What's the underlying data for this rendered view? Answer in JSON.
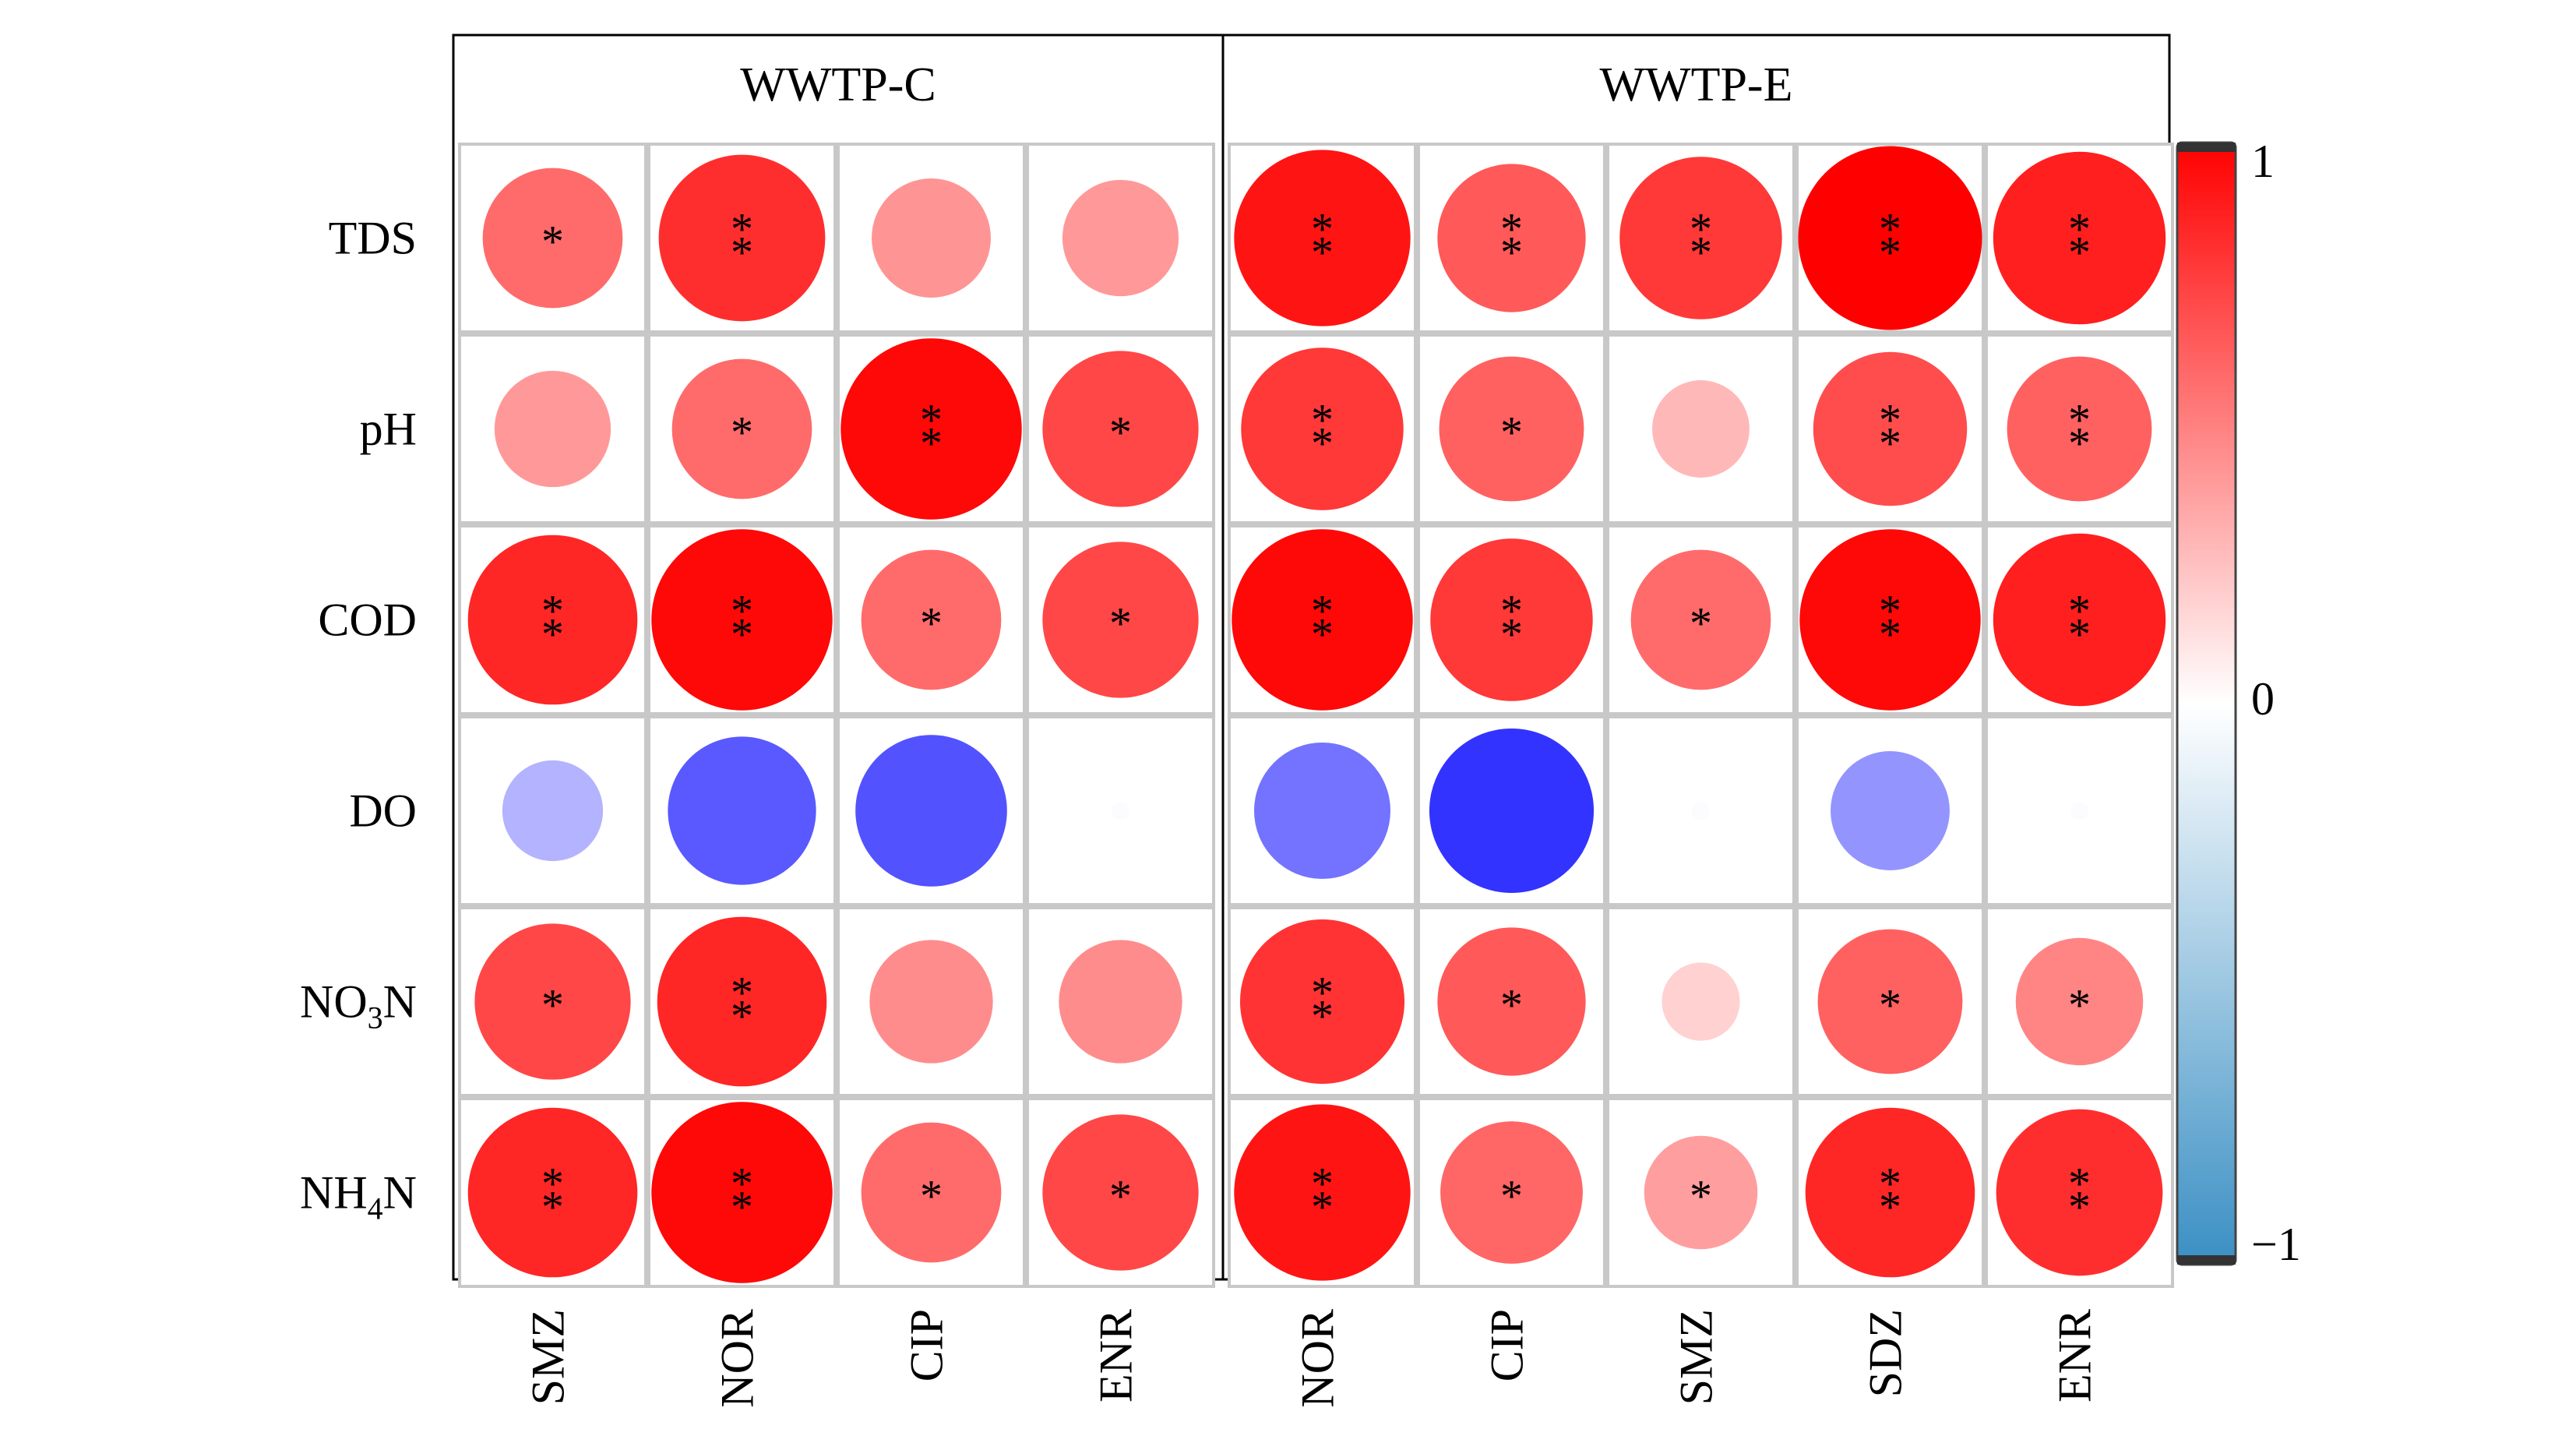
{
  "chart_data": {
    "type": "heatmap",
    "rows": [
      "TDS",
      "pH",
      "COD",
      "DO",
      "NO3N",
      "NH4N"
    ],
    "row_label_parts": [
      {
        "base": "TDS",
        "sub": "",
        "tail": ""
      },
      {
        "base": "pH",
        "sub": "",
        "tail": ""
      },
      {
        "base": "COD",
        "sub": "",
        "tail": ""
      },
      {
        "base": "DO",
        "sub": "",
        "tail": ""
      },
      {
        "base": "NO",
        "sub": "3",
        "tail": "N"
      },
      {
        "base": "NH",
        "sub": "4",
        "tail": "N"
      }
    ],
    "panels": [
      {
        "title": "WWTP-C",
        "columns": [
          "SMZ",
          "NOR",
          "CIP",
          "ENR"
        ],
        "values": [
          [
            0.58,
            0.82,
            0.42,
            0.4
          ],
          [
            0.4,
            0.58,
            0.97,
            0.72
          ],
          [
            0.85,
            0.97,
            0.58,
            0.72
          ],
          [
            -0.3,
            -0.65,
            -0.68,
            -0.01
          ],
          [
            0.72,
            0.85,
            0.45,
            0.45
          ],
          [
            0.85,
            0.97,
            0.58,
            0.72
          ]
        ],
        "significance": [
          [
            "*",
            "**",
            "",
            ""
          ],
          [
            "",
            "*",
            "**",
            "*"
          ],
          [
            "**",
            "**",
            "*",
            "*"
          ],
          [
            "",
            "",
            "",
            ""
          ],
          [
            "*",
            "**",
            "",
            ""
          ],
          [
            "**",
            "**",
            "*",
            "*"
          ]
        ]
      },
      {
        "title": "WWTP-E",
        "columns": [
          "NOR",
          "CIP",
          "SMZ",
          "SDZ",
          "ENR"
        ],
        "values": [
          [
            0.92,
            0.65,
            0.78,
            1.0,
            0.88
          ],
          [
            0.78,
            0.62,
            0.28,
            0.7,
            0.62
          ],
          [
            0.97,
            0.78,
            0.58,
            0.97,
            0.88
          ],
          [
            -0.55,
            -0.8,
            -0.01,
            -0.42,
            -0.01
          ],
          [
            0.8,
            0.65,
            0.18,
            0.62,
            0.48
          ],
          [
            0.92,
            0.6,
            0.38,
            0.85,
            0.82
          ]
        ],
        "significance": [
          [
            "**",
            "**",
            "**",
            "**",
            "**"
          ],
          [
            "**",
            "*",
            "",
            "**",
            "**"
          ],
          [
            "**",
            "**",
            "*",
            "**",
            "**"
          ],
          [
            "",
            "",
            "",
            "",
            ""
          ],
          [
            "**",
            "*",
            "",
            "*",
            "*"
          ],
          [
            "**",
            "*",
            "*",
            "**",
            "**"
          ]
        ]
      }
    ],
    "color_scale": {
      "min": -1,
      "mid": 0,
      "max": 1,
      "tick_labels": [
        "1",
        "0",
        "−1"
      ],
      "positive_color": "#ff0000",
      "zero_color": "#ffffff",
      "negative_colorbar_color": "#3a8fc4",
      "negative_circle_color": "#0000ff"
    },
    "legend_placement": "right"
  }
}
